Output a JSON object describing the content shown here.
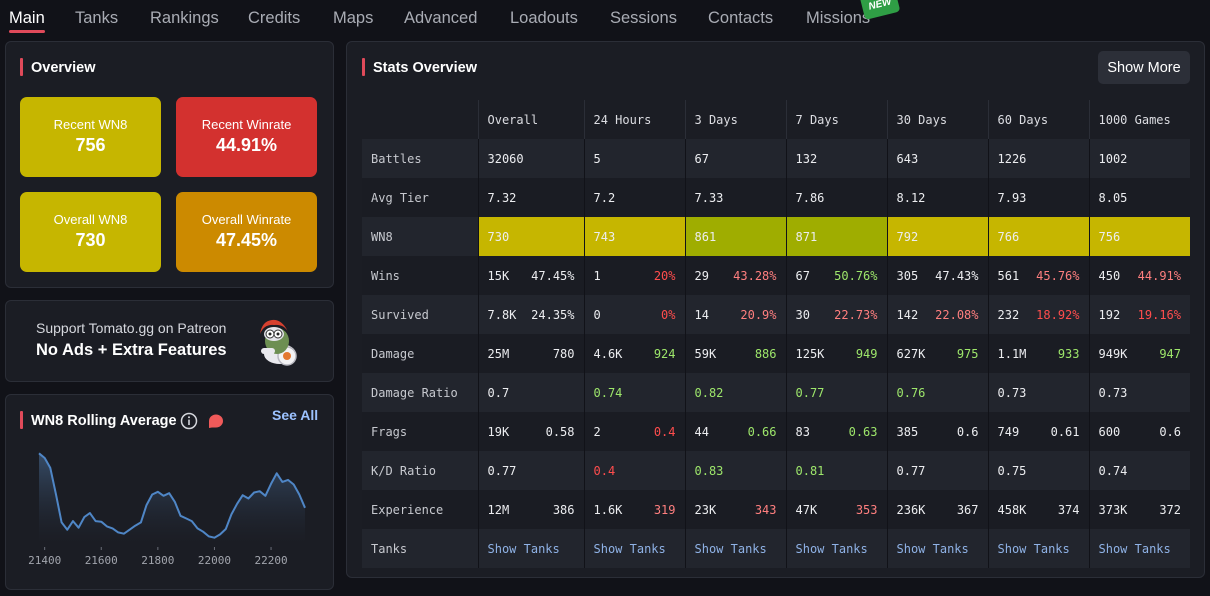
{
  "nav": {
    "tabs": [
      "Main",
      "Tanks",
      "Rankings",
      "Credits",
      "Maps",
      "Advanced",
      "Loadouts",
      "Sessions",
      "Contacts",
      "Missions"
    ],
    "new_badge": "NEW"
  },
  "overview": {
    "title": "Overview",
    "stats": [
      {
        "label": "Recent WN8",
        "value": "756",
        "color": "#c6b600"
      },
      {
        "label": "Recent Winrate",
        "value": "44.91%",
        "color": "#d3312f"
      },
      {
        "label": "Overall WN8",
        "value": "730",
        "color": "#c6b600"
      },
      {
        "label": "Overall Winrate",
        "value": "47.45%",
        "color": "#cc8a00"
      }
    ]
  },
  "patreon": {
    "line1": "Support Tomato.gg on Patreon",
    "line2": "No Ads + Extra Features"
  },
  "wn8_rolling": {
    "title": "WN8 Rolling Average",
    "see_all": "See All",
    "chart_data": {
      "type": "area",
      "x_ticks": [
        "21400",
        "21600",
        "21800",
        "22000",
        "22200"
      ],
      "x": [
        21380,
        21400,
        21420,
        21440,
        21460,
        21480,
        21500,
        21520,
        21540,
        21560,
        21580,
        21600,
        21620,
        21640,
        21660,
        21680,
        21700,
        21720,
        21740,
        21760,
        21780,
        21800,
        21820,
        21840,
        21860,
        21880,
        21900,
        21920,
        21940,
        21960,
        21980,
        22000,
        22020,
        22040,
        22060,
        22080,
        22100,
        22120,
        22140,
        22160,
        22180,
        22200,
        22220,
        22240,
        22260,
        22280,
        22300,
        22320
      ],
      "y": [
        830,
        823,
        808,
        768,
        726,
        715,
        728,
        718,
        734,
        740,
        728,
        727,
        720,
        717,
        711,
        709,
        715,
        721,
        726,
        752,
        768,
        772,
        766,
        770,
        757,
        736,
        732,
        728,
        717,
        712,
        705,
        703,
        708,
        716,
        738,
        754,
        767,
        762,
        771,
        773,
        766,
        784,
        800,
        787,
        790,
        783,
        768,
        748
      ],
      "ylim": [
        695,
        835
      ],
      "color": "#4f86c6"
    }
  },
  "stats_overview": {
    "title": "Stats Overview",
    "show_more": "Show More",
    "columns": [
      "",
      "Overall",
      "24 Hours",
      "3 Days",
      "7 Days",
      "30 Days",
      "60 Days",
      "1000 Games"
    ],
    "rows": [
      {
        "label": "Battles",
        "cells": [
          [
            "32060",
            ""
          ],
          [
            "5",
            ""
          ],
          [
            "67",
            ""
          ],
          [
            "132",
            ""
          ],
          [
            "643",
            ""
          ],
          [
            "1226",
            ""
          ],
          [
            "1002",
            ""
          ]
        ]
      },
      {
        "label": "Avg Tier",
        "cells": [
          [
            "7.32",
            ""
          ],
          [
            "7.2",
            ""
          ],
          [
            "7.33",
            ""
          ],
          [
            "7.86",
            ""
          ],
          [
            "8.12",
            ""
          ],
          [
            "7.93",
            ""
          ],
          [
            "8.05",
            ""
          ]
        ]
      },
      {
        "label": "WN8",
        "cells": [
          [
            "730",
            ""
          ],
          [
            "743",
            ""
          ],
          [
            "861",
            ""
          ],
          [
            "871",
            ""
          ],
          [
            "792",
            ""
          ],
          [
            "766",
            ""
          ],
          [
            "756",
            ""
          ]
        ]
      },
      {
        "label": "Wins",
        "cells": [
          [
            "15K",
            "47.45%"
          ],
          [
            "1",
            "20%"
          ],
          [
            "29",
            "43.28%"
          ],
          [
            "67",
            "50.76%"
          ],
          [
            "305",
            "47.43%"
          ],
          [
            "561",
            "45.76%"
          ],
          [
            "450",
            "44.91%"
          ]
        ]
      },
      {
        "label": "Survived",
        "cells": [
          [
            "7.8K",
            "24.35%"
          ],
          [
            "0",
            "0%"
          ],
          [
            "14",
            "20.9%"
          ],
          [
            "30",
            "22.73%"
          ],
          [
            "142",
            "22.08%"
          ],
          [
            "232",
            "18.92%"
          ],
          [
            "192",
            "19.16%"
          ]
        ]
      },
      {
        "label": "Damage",
        "cells": [
          [
            "25M",
            "780"
          ],
          [
            "4.6K",
            "924"
          ],
          [
            "59K",
            "886"
          ],
          [
            "125K",
            "949"
          ],
          [
            "627K",
            "975"
          ],
          [
            "1.1M",
            "933"
          ],
          [
            "949K",
            "947"
          ]
        ]
      },
      {
        "label": "Damage Ratio",
        "cells": [
          [
            "0.7",
            ""
          ],
          [
            "0.74",
            ""
          ],
          [
            "0.82",
            ""
          ],
          [
            "0.77",
            ""
          ],
          [
            "0.76",
            ""
          ],
          [
            "0.73",
            ""
          ],
          [
            "0.73",
            ""
          ]
        ]
      },
      {
        "label": "Frags",
        "cells": [
          [
            "19K",
            "0.58"
          ],
          [
            "2",
            "0.4"
          ],
          [
            "44",
            "0.66"
          ],
          [
            "83",
            "0.63"
          ],
          [
            "385",
            "0.6"
          ],
          [
            "749",
            "0.61"
          ],
          [
            "600",
            "0.6"
          ]
        ]
      },
      {
        "label": "K/D Ratio",
        "cells": [
          [
            "0.77",
            ""
          ],
          [
            "0.4",
            ""
          ],
          [
            "0.83",
            ""
          ],
          [
            "0.81",
            ""
          ],
          [
            "0.77",
            ""
          ],
          [
            "0.75",
            ""
          ],
          [
            "0.74",
            ""
          ]
        ]
      },
      {
        "label": "Experience",
        "cells": [
          [
            "12M",
            "386"
          ],
          [
            "1.6K",
            "319"
          ],
          [
            "23K",
            "343"
          ],
          [
            "47K",
            "353"
          ],
          [
            "236K",
            "367"
          ],
          [
            "458K",
            "374"
          ],
          [
            "373K",
            "372"
          ]
        ]
      },
      {
        "label": "Tanks",
        "cells": [
          [
            "Show Tanks",
            ""
          ],
          [
            "Show Tanks",
            ""
          ],
          [
            "Show Tanks",
            ""
          ],
          [
            "Show Tanks",
            ""
          ],
          [
            "Show Tanks",
            ""
          ],
          [
            "Show Tanks",
            ""
          ],
          [
            "Show Tanks",
            ""
          ]
        ]
      }
    ],
    "wn8_colors": [
      "#c6b600",
      "#c6b600",
      "#9fad00",
      "#9fad00",
      "#c6b600",
      "#c6b600",
      "#c6b600"
    ],
    "cell_styles": {
      "Wins": [
        [
          "white",
          "white"
        ],
        [
          "white",
          "red"
        ],
        [
          "white",
          "pink"
        ],
        [
          "white",
          "green"
        ],
        [
          "white",
          "white"
        ],
        [
          "white",
          "pink"
        ],
        [
          "white",
          "pink"
        ]
      ],
      "Survived": [
        [
          "white",
          "white"
        ],
        [
          "white",
          "red"
        ],
        [
          "white",
          "pink"
        ],
        [
          "white",
          "pink"
        ],
        [
          "white",
          "pink"
        ],
        [
          "white",
          "red"
        ],
        [
          "white",
          "red"
        ]
      ],
      "Damage": [
        [
          "white",
          "white"
        ],
        [
          "white",
          "green"
        ],
        [
          "white",
          "green"
        ],
        [
          "white",
          "green"
        ],
        [
          "white",
          "green"
        ],
        [
          "white",
          "green"
        ],
        [
          "white",
          "green"
        ]
      ],
      "Damage Ratio": [
        [
          "white",
          ""
        ],
        [
          "green",
          ""
        ],
        [
          "green",
          ""
        ],
        [
          "green",
          ""
        ],
        [
          "green",
          ""
        ],
        [
          "white",
          ""
        ],
        [
          "white",
          ""
        ]
      ],
      "Frags": [
        [
          "white",
          "white"
        ],
        [
          "white",
          "red"
        ],
        [
          "white",
          "green"
        ],
        [
          "white",
          "green"
        ],
        [
          "white",
          "white"
        ],
        [
          "white",
          "white"
        ],
        [
          "white",
          "white"
        ]
      ],
      "K/D Ratio": [
        [
          "white",
          ""
        ],
        [
          "red",
          ""
        ],
        [
          "green",
          ""
        ],
        [
          "green",
          ""
        ],
        [
          "white",
          ""
        ],
        [
          "white",
          ""
        ],
        [
          "white",
          ""
        ]
      ],
      "Experience": [
        [
          "white",
          "white"
        ],
        [
          "white",
          "pink"
        ],
        [
          "white",
          "pink"
        ],
        [
          "white",
          "pink"
        ],
        [
          "white",
          "white"
        ],
        [
          "white",
          "white"
        ],
        [
          "white",
          "white"
        ]
      ]
    }
  }
}
